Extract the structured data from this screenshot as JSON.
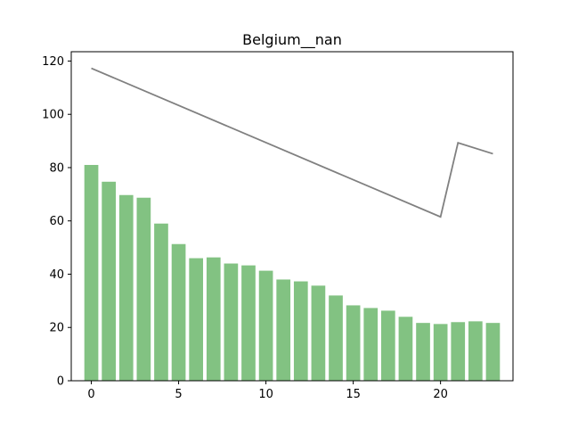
{
  "chart_data": {
    "type": "bar",
    "title": "Belgium__nan",
    "xlabel": "",
    "ylabel": "",
    "x": [
      0,
      1,
      2,
      3,
      4,
      5,
      6,
      7,
      8,
      9,
      10,
      11,
      12,
      13,
      14,
      15,
      16,
      17,
      18,
      19,
      20,
      21,
      22,
      23
    ],
    "xlim": [
      -1.15,
      24.15
    ],
    "ylim": [
      0,
      123.5
    ],
    "xticks": [
      0,
      5,
      10,
      15,
      20
    ],
    "yticks": [
      0,
      20,
      40,
      60,
      80,
      100,
      120
    ],
    "grid": false,
    "series": [
      {
        "type": "bar",
        "color": "#82c282",
        "values": [
          81.0,
          74.7,
          69.7,
          68.7,
          59.0,
          51.3,
          46.0,
          46.3,
          44.0,
          43.3,
          41.3,
          38.0,
          37.3,
          35.7,
          32.0,
          28.3,
          27.3,
          26.3,
          24.0,
          21.7,
          21.3,
          22.0,
          22.3,
          21.7
        ]
      },
      {
        "type": "line",
        "color": "#808080",
        "x": [
          0,
          20,
          21,
          23
        ],
        "values": [
          117.3,
          61.5,
          89.3,
          85.2
        ]
      }
    ]
  }
}
